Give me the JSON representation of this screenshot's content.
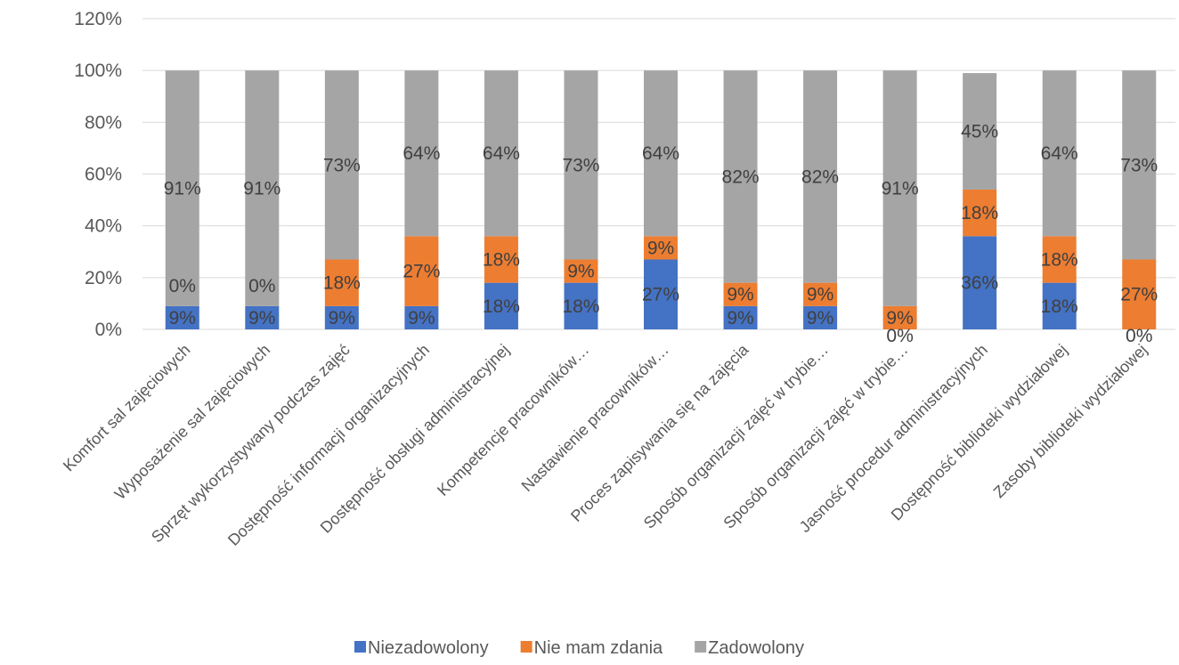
{
  "chart_data": {
    "type": "bar",
    "stacked": true,
    "title": "",
    "xlabel": "",
    "ylabel": "",
    "ylim": [
      0,
      120
    ],
    "yticks": [
      "0%",
      "20%",
      "40%",
      "60%",
      "80%",
      "100%",
      "120%"
    ],
    "grid": true,
    "legend_position": "bottom",
    "categories": [
      "Komfort sal zajęciowych",
      "Wyposażenie sal zajęciowych",
      "Sprzęt wykorzystywany podczas zajęć",
      "Dostępność informacji organizacyjnych",
      "Dostępność obsługi administracyjnej",
      "Kompetencje pracowników…",
      "Nastawienie pracowników…",
      "Proces zapisywania się na zajęcia",
      "Sposób organizacji zajęć w trybie…",
      "Sposób organizacji zajęć w trybie…",
      "Jasność procedur administracyjnych",
      "Dostępność biblioteki wydziałowej",
      "Zasoby biblioteki wydziałowej"
    ],
    "series": [
      {
        "name": "Niezadowolony",
        "color": "#4472C4",
        "values": [
          9,
          9,
          9,
          9,
          18,
          18,
          27,
          9,
          9,
          0,
          36,
          18,
          0
        ],
        "labels": [
          "9%",
          "9%",
          "9%",
          "9%",
          "18%",
          "18%",
          "27%",
          "9%",
          "9%",
          "0%",
          "36%",
          "18%",
          "0%"
        ]
      },
      {
        "name": "Nie mam zdania",
        "color": "#ED7D31",
        "values": [
          0,
          0,
          18,
          27,
          18,
          9,
          9,
          9,
          9,
          9,
          18,
          18,
          27
        ],
        "labels": [
          "0%",
          "0%",
          "18%",
          "27%",
          "18%",
          "9%",
          "9%",
          "9%",
          "9%",
          "9%",
          "18%",
          "18%",
          "27%"
        ]
      },
      {
        "name": "Zadowolony",
        "color": "#A5A5A5",
        "values": [
          91,
          91,
          73,
          64,
          64,
          73,
          64,
          82,
          82,
          91,
          45,
          64,
          73
        ],
        "labels": [
          "91%",
          "91%",
          "73%",
          "64%",
          "64%",
          "73%",
          "64%",
          "82%",
          "82%",
          "91%",
          "45%",
          "64%",
          "73%"
        ]
      }
    ]
  }
}
